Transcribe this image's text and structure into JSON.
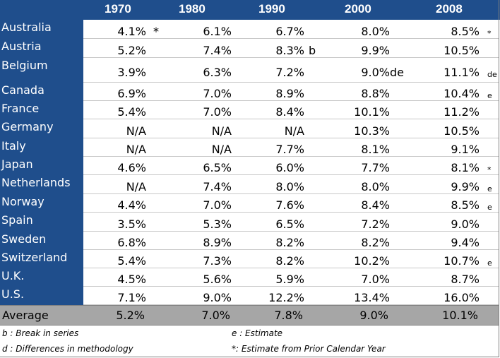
{
  "header": {
    "years": [
      "1970",
      "1980",
      "1990",
      "2000",
      "2008"
    ]
  },
  "rows": [
    {
      "country": "Australia",
      "values": [
        "4.1%",
        "6.1%",
        "6.7%",
        "8.0%",
        "8.5%"
      ],
      "mark_1970": "*",
      "mark_1990": "",
      "mark_2000": "",
      "mark_end": "*"
    },
    {
      "country": "Austria",
      "values": [
        "5.2%",
        "7.4%",
        "8.3%",
        "9.9%",
        "10.5%"
      ],
      "mark_1970": "",
      "mark_1990": "b",
      "mark_2000": "",
      "mark_end": ""
    },
    {
      "country": "Belgium",
      "values": [
        "3.9%",
        "6.3%",
        "7.2%",
        "9.0%",
        "11.1%"
      ],
      "mark_1970": "",
      "mark_1990": "",
      "mark_2000": "de",
      "mark_end": "de"
    },
    {
      "country": "Canada",
      "values": [
        "6.9%",
        "7.0%",
        "8.9%",
        "8.8%",
        "10.4%"
      ],
      "mark_1970": "",
      "mark_1990": "",
      "mark_2000": "",
      "mark_end": "e"
    },
    {
      "country": "France",
      "values": [
        "5.4%",
        "7.0%",
        "8.4%",
        "10.1%",
        "11.2%"
      ],
      "mark_1970": "",
      "mark_1990": "",
      "mark_2000": "",
      "mark_end": ""
    },
    {
      "country": "Germany",
      "values": [
        "N/A",
        "N/A",
        "N/A",
        "10.3%",
        "10.5%"
      ],
      "mark_1970": "",
      "mark_1990": "",
      "mark_2000": "",
      "mark_end": ""
    },
    {
      "country": "Italy",
      "values": [
        "N/A",
        "N/A",
        "7.7%",
        "8.1%",
        "9.1%"
      ],
      "mark_1970": "",
      "mark_1990": "",
      "mark_2000": "",
      "mark_end": ""
    },
    {
      "country": "Japan",
      "values": [
        "4.6%",
        "6.5%",
        "6.0%",
        "7.7%",
        "8.1%"
      ],
      "mark_1970": "",
      "mark_1990": "",
      "mark_2000": "",
      "mark_end": "*"
    },
    {
      "country": "Netherlands",
      "values": [
        "N/A",
        "7.4%",
        "8.0%",
        "8.0%",
        "9.9%"
      ],
      "mark_1970": "",
      "mark_1990": "",
      "mark_2000": "",
      "mark_end": "e"
    },
    {
      "country": "Norway",
      "values": [
        "4.4%",
        "7.0%",
        "7.6%",
        "8.4%",
        "8.5%"
      ],
      "mark_1970": "",
      "mark_1990": "",
      "mark_2000": "",
      "mark_end": "e"
    },
    {
      "country": "Spain",
      "values": [
        "3.5%",
        "5.3%",
        "6.5%",
        "7.2%",
        "9.0%"
      ],
      "mark_1970": "",
      "mark_1990": "",
      "mark_2000": "",
      "mark_end": ""
    },
    {
      "country": "Sweden",
      "values": [
        "6.8%",
        "8.9%",
        "8.2%",
        "8.2%",
        "9.4%"
      ],
      "mark_1970": "",
      "mark_1990": "",
      "mark_2000": "",
      "mark_end": ""
    },
    {
      "country": "Switzerland",
      "values": [
        "5.4%",
        "7.3%",
        "8.2%",
        "10.2%",
        "10.7%"
      ],
      "mark_1970": "",
      "mark_1990": "",
      "mark_2000": "",
      "mark_end": "e"
    },
    {
      "country": "U.K.",
      "values": [
        "4.5%",
        "5.6%",
        "5.9%",
        "7.0%",
        "8.7%"
      ],
      "mark_1970": "",
      "mark_1990": "",
      "mark_2000": "",
      "mark_end": ""
    },
    {
      "country": "U.S.",
      "values": [
        "7.1%",
        "9.0%",
        "12.2%",
        "13.4%",
        "16.0%"
      ],
      "mark_1970": "",
      "mark_1990": "",
      "mark_2000": "",
      "mark_end": ""
    }
  ],
  "average": {
    "label": "Average",
    "values": [
      "5.2%",
      "7.0%",
      "7.8%",
      "9.0%",
      "10.1%"
    ]
  },
  "footnotes": {
    "b": "b : Break in series",
    "e": "e : Estimate",
    "d": "d : Differences in methodology",
    "star": "*: Estimate from Prior Calendar Year"
  },
  "colors": {
    "header_bg": "#1f4e8c",
    "average_bg": "#a6a6a6"
  }
}
